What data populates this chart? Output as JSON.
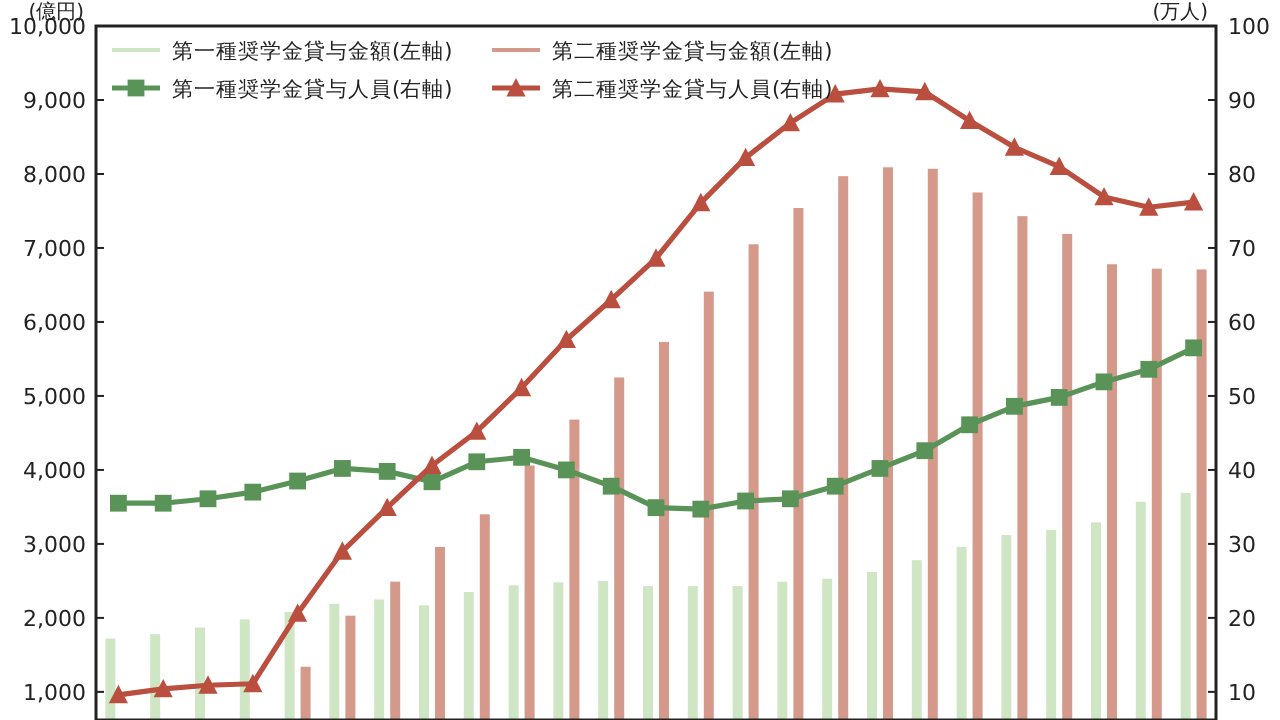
{
  "chart_data": {
    "type": "bar",
    "ylabel": "(億円)",
    "y2label": "(万人)",
    "categories": [
      null,
      null,
      null,
      null,
      null,
      null,
      null,
      null,
      null,
      null,
      null,
      null,
      null,
      null,
      null,
      null,
      null,
      null,
      null,
      null,
      null,
      null,
      null,
      null,
      null
    ],
    "series": [
      {
        "name": "第一種奨学金貸与金額(左軸)",
        "color": "#cfe6c4",
        "values": [
          1720,
          1780,
          1870,
          1980,
          2080,
          2190,
          2250,
          2170,
          2350,
          2440,
          2480,
          2500,
          2430,
          2430,
          2430,
          2490,
          2530,
          2620,
          2780,
          2960,
          3120,
          3190,
          3290,
          3570,
          3690
        ]
      },
      {
        "name": "第二種奨学金貸与金額(左軸)",
        "color": "#d4998a",
        "values": [
          null,
          null,
          null,
          null,
          1340,
          2030,
          2490,
          2960,
          3400,
          4060,
          4680,
          5250,
          5730,
          6410,
          7050,
          7540,
          7970,
          8090,
          8070,
          7750,
          7430,
          7190,
          6780,
          6720,
          6710
        ]
      },
      {
        "name": "第一種奨学金貸与人員(右軸)",
        "type": "line",
        "axis": "y2",
        "marker": "square",
        "color": "#5a9358",
        "values": [
          35.5,
          35.5,
          36.1,
          37.0,
          38.5,
          40.2,
          39.8,
          38.4,
          41.1,
          41.7,
          40.0,
          37.8,
          34.9,
          34.7,
          35.8,
          36.1,
          37.8,
          40.2,
          42.6,
          46.1,
          48.6,
          49.8,
          51.9,
          53.6,
          56.5
        ]
      },
      {
        "name": "第二種奨学金貸与人員(右軸)",
        "type": "line",
        "axis": "y2",
        "marker": "triangle",
        "color": "#bb4f3f",
        "values": [
          9.6,
          10.4,
          10.9,
          11.1,
          20.6,
          29.0,
          34.9,
          40.6,
          45.2,
          51.1,
          57.6,
          63.0,
          68.6,
          76.1,
          82.2,
          86.9,
          90.8,
          91.5,
          91.1,
          87.2,
          83.6,
          81.0,
          76.9,
          75.5,
          76.2
        ]
      }
    ],
    "ylim": [
      620,
      10000
    ],
    "yticks": [
      {
        "value": 1000,
        "label": "1,000"
      },
      {
        "value": 2000,
        "label": "2,000"
      },
      {
        "value": 3000,
        "label": "3,000"
      },
      {
        "value": 4000,
        "label": "4,000"
      },
      {
        "value": 5000,
        "label": "5,000"
      },
      {
        "value": 6000,
        "label": "6,000"
      },
      {
        "value": 7000,
        "label": "7,000"
      },
      {
        "value": 8000,
        "label": "8,000"
      },
      {
        "value": 9000,
        "label": "9,000"
      },
      {
        "value": 10000,
        "label": "10,000"
      }
    ],
    "y2lim": [
      6.2,
      100
    ],
    "y2ticks": [
      10,
      20,
      30,
      40,
      50,
      60,
      70,
      80,
      90,
      100
    ],
    "legend": "top"
  }
}
